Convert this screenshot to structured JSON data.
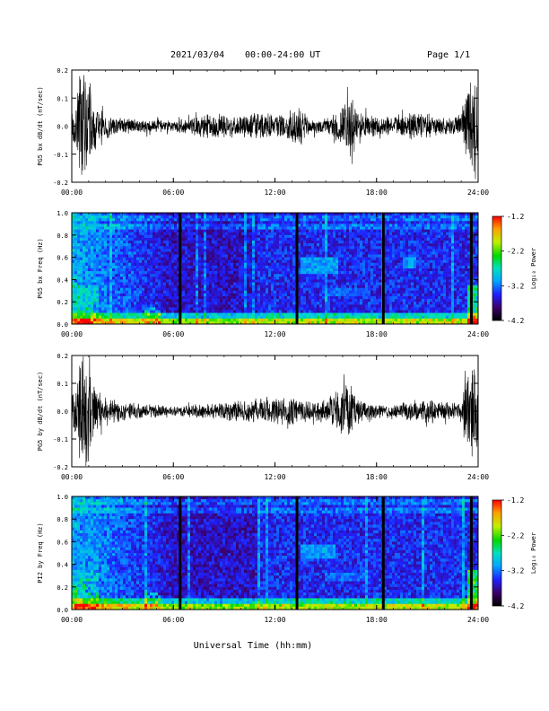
{
  "header": {
    "date": "2021/03/04",
    "range": "00:00-24:00 UT",
    "page": "Page 1/1"
  },
  "x_axis": {
    "label": "Universal Time (hh:mm)",
    "ticks": [
      "00:00",
      "06:00",
      "12:00",
      "18:00",
      "24:00"
    ]
  },
  "colorbar": {
    "label": "Log₁₀ Power",
    "ticks": [
      "-1.2",
      "-2.2",
      "-3.2",
      "-4.2"
    ]
  },
  "chart_data": [
    {
      "type": "line",
      "panel": "bx-waveform",
      "ylabel": "PG5 bx dB/dt (nT/sec)",
      "ylim": [
        -0.2,
        0.2
      ],
      "yticks": [
        "0.2",
        "0.1",
        "0.0",
        "-0.1",
        "-0.2"
      ],
      "xlim": [
        0,
        24
      ],
      "xunit": "hours UT",
      "amplitude_envelope": {
        "hour": [
          0,
          0.5,
          1,
          1.5,
          2,
          3,
          4,
          5,
          6,
          7,
          8,
          9,
          10,
          11,
          12,
          13,
          13.5,
          14,
          15,
          16,
          16.5,
          17,
          18,
          19,
          20,
          21,
          22,
          23,
          23.5,
          24
        ],
        "amplitude": [
          0.05,
          0.2,
          0.2,
          0.07,
          0.05,
          0.03,
          0.03,
          0.025,
          0.02,
          0.035,
          0.05,
          0.045,
          0.04,
          0.05,
          0.045,
          0.06,
          0.08,
          0.025,
          0.03,
          0.08,
          0.12,
          0.05,
          0.04,
          0.035,
          0.05,
          0.05,
          0.03,
          0.05,
          0.2,
          0.2
        ]
      }
    },
    {
      "type": "heatmap",
      "panel": "bx-spectrogram",
      "ylabel": "PG5 bx Freq (Hz)",
      "ylim": [
        0.0,
        1.0
      ],
      "yticks": [
        "1.0",
        "0.8",
        "0.6",
        "0.4",
        "0.2",
        "0.0"
      ],
      "xlim": [
        0,
        24
      ],
      "zlim": [
        -4.2,
        -1.2
      ],
      "zlabel": "Log10 Power",
      "data_gaps_hours": [
        6.4,
        13.3,
        18.4,
        23.6
      ],
      "features": [
        {
          "hour_range": [
            13.5,
            15.8
          ],
          "freq_range": [
            0.45,
            0.6
          ],
          "log_power": -3.0
        },
        {
          "hour_range": [
            15.0,
            17.5
          ],
          "freq_range": [
            0.25,
            0.32
          ],
          "log_power": -3.2
        },
        {
          "hour_range": [
            19.6,
            20.4
          ],
          "freq_range": [
            0.5,
            0.6
          ],
          "log_power": -3.0
        }
      ]
    },
    {
      "type": "line",
      "panel": "by-waveform",
      "ylabel": "PG5 by dB/dt (nT/sec)",
      "ylim": [
        -0.2,
        0.2
      ],
      "yticks": [
        "0.2",
        "0.1",
        "0.0",
        "-0.1",
        "-0.2"
      ],
      "xlim": [
        0,
        24
      ],
      "xunit": "hours UT",
      "amplitude_envelope": {
        "hour": [
          0,
          0.5,
          1,
          1.5,
          2,
          3,
          4,
          5,
          6,
          7,
          8,
          9,
          10,
          11,
          12,
          13,
          14,
          15,
          16,
          16.5,
          17,
          18,
          19,
          20,
          21,
          22,
          23,
          23.5,
          24
        ],
        "amplitude": [
          0.06,
          0.2,
          0.2,
          0.08,
          0.05,
          0.04,
          0.03,
          0.025,
          0.02,
          0.025,
          0.03,
          0.035,
          0.04,
          0.05,
          0.05,
          0.06,
          0.035,
          0.05,
          0.09,
          0.1,
          0.05,
          0.03,
          0.025,
          0.04,
          0.05,
          0.035,
          0.04,
          0.2,
          0.2
        ]
      }
    },
    {
      "type": "heatmap",
      "panel": "by-spectrogram",
      "ylabel": "PI2 by Freq (Hz)",
      "ylim": [
        0.0,
        1.0
      ],
      "yticks": [
        "1.0",
        "0.8",
        "0.6",
        "0.4",
        "0.2",
        "0.0"
      ],
      "xlim": [
        0,
        24
      ],
      "zlim": [
        -4.2,
        -1.2
      ],
      "zlabel": "Log10 Power",
      "data_gaps_hours": [
        6.4,
        13.3,
        18.4,
        23.6
      ],
      "features": [
        {
          "hour_range": [
            13.5,
            15.6
          ],
          "freq_range": [
            0.45,
            0.58
          ],
          "log_power": -3.0
        },
        {
          "hour_range": [
            15.0,
            17.5
          ],
          "freq_range": [
            0.25,
            0.32
          ],
          "log_power": -3.2
        }
      ]
    }
  ]
}
